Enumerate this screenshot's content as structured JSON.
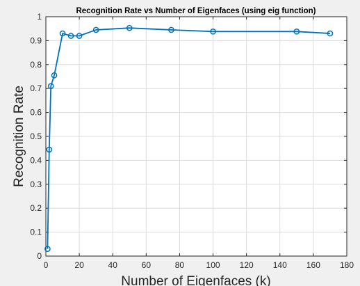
{
  "chart_data": {
    "type": "line",
    "title": "Recognition Rate vs Number of Eigenfaces (using eig function)",
    "xlabel": "Number of Eigenfaces (k)",
    "ylabel": "Recognition Rate",
    "xlim": [
      0,
      180
    ],
    "ylim": [
      0,
      1
    ],
    "xticks": [
      "0",
      "20",
      "40",
      "60",
      "80",
      "100",
      "120",
      "140",
      "160",
      "180"
    ],
    "yticks": [
      "0",
      "0.1",
      "0.2",
      "0.3",
      "0.4",
      "0.5",
      "0.6",
      "0.7",
      "0.8",
      "0.9",
      "1"
    ],
    "grid": true,
    "marker": "circle",
    "series": [
      {
        "x": [
          1,
          2,
          3,
          5,
          10,
          15,
          20,
          30,
          50,
          75,
          100,
          150,
          170
        ],
        "y": [
          0.03,
          0.445,
          0.71,
          0.755,
          0.93,
          0.92,
          0.92,
          0.945,
          0.953,
          0.945,
          0.938,
          0.938,
          0.93
        ],
        "color": "#0072bd"
      }
    ]
  }
}
